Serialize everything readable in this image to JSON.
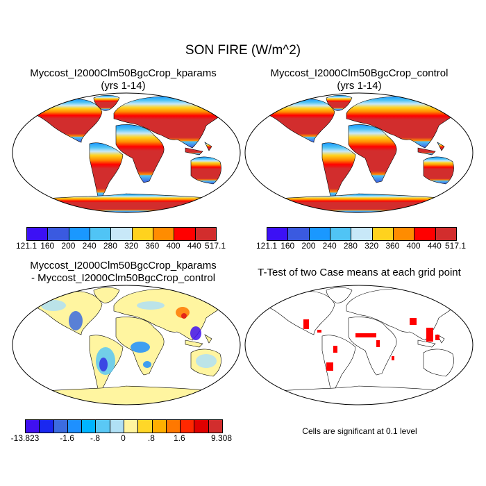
{
  "title": "SON FIRE (W/m^2)",
  "panels": [
    {
      "title_line1": "Myccost_I2000Clm50BgcCrop_kparams",
      "title_line2": "(yrs 1-14)"
    },
    {
      "title_line1": "Myccost_I2000Clm50BgcCrop_control",
      "title_line2": "(yrs 1-14)"
    },
    {
      "title_line1": "Myccost_I2000Clm50BgcCrop_kparams",
      "title_line2": "- Myccost_I2000Clm50BgcCrop_control"
    },
    {
      "title_line1": "T-Test of two Case means at each grid point"
    }
  ],
  "colorbar_abs": {
    "labels": [
      "121.1",
      "160",
      "200",
      "240",
      "280",
      "320",
      "360",
      "400",
      "440",
      "517.1"
    ],
    "colors": [
      "#3c10f5",
      "#3a5ae0",
      "#1a98ff",
      "#50c4f5",
      "#c8e8f8",
      "#ffd21e",
      "#ff8c00",
      "#ff0000",
      "#d22d2d"
    ]
  },
  "colorbar_diff": {
    "labels": [
      "-13.823",
      "-1.6",
      "-.8",
      "0",
      ".8",
      "1.6",
      "9.308"
    ],
    "colors": [
      "#4010f0",
      "#1a28f0",
      "#3c6ce0",
      "#1e90ff",
      "#00b4ff",
      "#5ac8f5",
      "#b0e0f5",
      "#fff5a0",
      "#ffd728",
      "#ffaf00",
      "#ff7800",
      "#ff2800",
      "#e00000",
      "#d22d2d"
    ]
  },
  "significance_color": "#ff0000",
  "note": "Cells are significant at 0.1 level"
}
